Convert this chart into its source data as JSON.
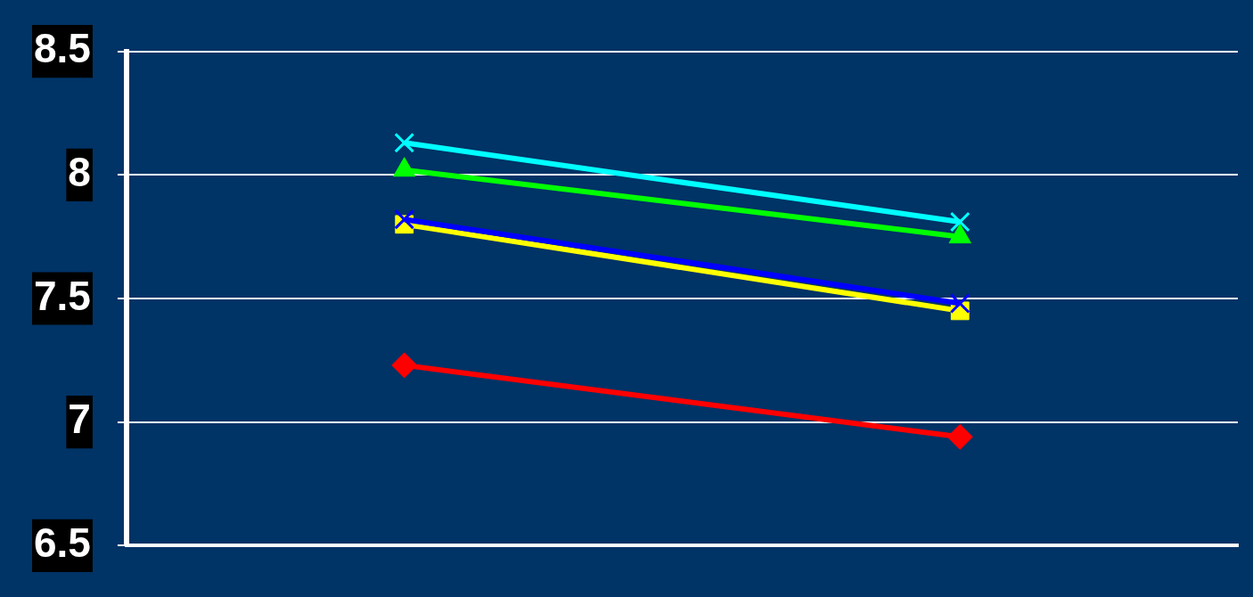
{
  "chart_data": {
    "type": "line",
    "categories": [
      null,
      null
    ],
    "series": [
      {
        "color": "#00ffff",
        "marker": "cross",
        "values": [
          8.13,
          7.81
        ]
      },
      {
        "color": "#00ff00",
        "marker": "triangle",
        "values": [
          8.02,
          7.75
        ]
      },
      {
        "color": "#0000ff",
        "marker": "cross",
        "values": [
          7.82,
          7.48
        ]
      },
      {
        "color": "#ffff00",
        "marker": "square",
        "values": [
          7.8,
          7.45
        ]
      },
      {
        "color": "#ff0000",
        "marker": "diamond",
        "values": [
          7.23,
          6.94
        ]
      }
    ],
    "ylim": [
      6.5,
      8.5
    ],
    "yticks": [
      6.5,
      7,
      7.5,
      8,
      8.5
    ],
    "grid": "y",
    "legend": false
  }
}
